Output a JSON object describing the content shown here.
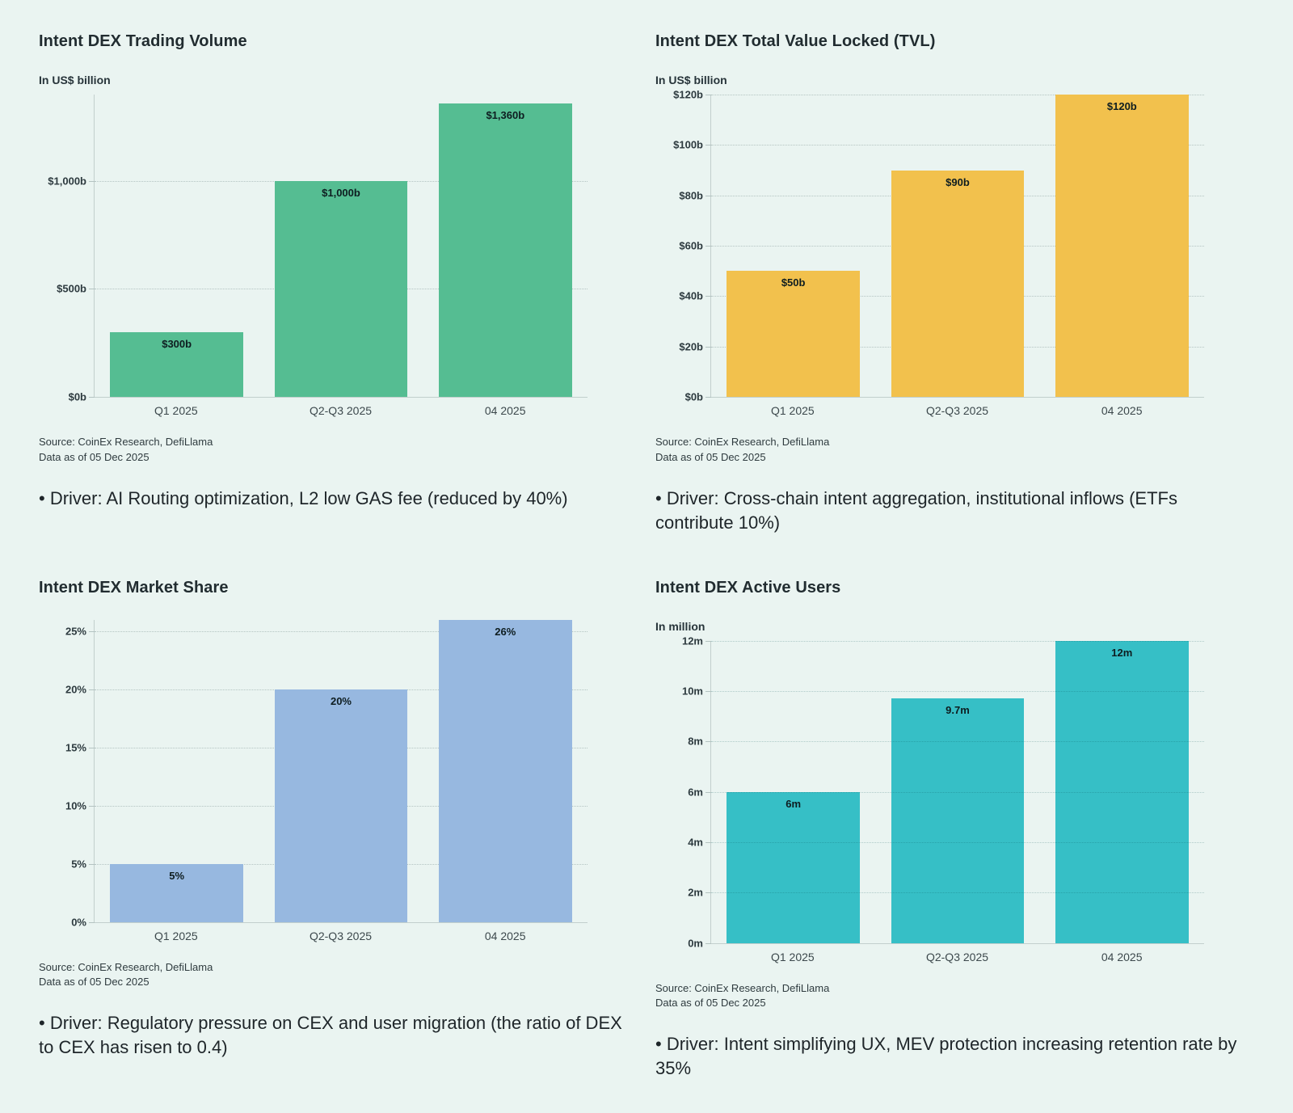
{
  "page": {
    "background_color": "#eaf4f1"
  },
  "chart_data": [
    {
      "type": "bar",
      "title": "Intent DEX Trading Volume",
      "unit_label": "In US$ billion",
      "categories": [
        "Q1 2025",
        "Q2-Q3 2025",
        "04 2025"
      ],
      "values": [
        300,
        1000,
        1360
      ],
      "bar_labels": [
        "$300b",
        "$1,000b",
        "$1,360b"
      ],
      "ylim": [
        0,
        1400
      ],
      "yticks": [
        {
          "value": 0,
          "label": "$0b"
        },
        {
          "value": 500,
          "label": "$500b"
        },
        {
          "value": 1000,
          "label": "$1,000b"
        }
      ],
      "grid": true,
      "legend": "none",
      "bar_color": "#55bd92",
      "source": "Source: CoinEx Research, DefiLlama",
      "data_as_of": "Data as of 05 Dec 2025",
      "driver": "• Driver: AI Routing optimization, L2 low GAS fee (reduced by 40%)"
    },
    {
      "type": "bar",
      "title": "Intent DEX Total Value Locked (TVL)",
      "unit_label": "In US$ billion",
      "categories": [
        "Q1 2025",
        "Q2-Q3 2025",
        "04 2025"
      ],
      "values": [
        50,
        90,
        120
      ],
      "bar_labels": [
        "$50b",
        "$90b",
        "$120b"
      ],
      "ylim": [
        0,
        120
      ],
      "yticks": [
        {
          "value": 0,
          "label": "$0b"
        },
        {
          "value": 20,
          "label": "$20b"
        },
        {
          "value": 40,
          "label": "$40b"
        },
        {
          "value": 60,
          "label": "$60b"
        },
        {
          "value": 80,
          "label": "$80b"
        },
        {
          "value": 100,
          "label": "$100b"
        },
        {
          "value": 120,
          "label": "$120b"
        }
      ],
      "grid": true,
      "legend": "none",
      "bar_color": "#f2c14d",
      "source": "Source: CoinEx Research, DefiLlama",
      "data_as_of": "Data as of 05 Dec 2025",
      "driver": "• Driver: Cross-chain intent aggregation, institutional inflows (ETFs contribute 10%)"
    },
    {
      "type": "bar",
      "title": "Intent DEX Market Share",
      "unit_label": "",
      "categories": [
        "Q1 2025",
        "Q2-Q3 2025",
        "04 2025"
      ],
      "values": [
        5,
        20,
        26
      ],
      "bar_labels": [
        "5%",
        "20%",
        "26%"
      ],
      "ylim": [
        0,
        26
      ],
      "yticks": [
        {
          "value": 0,
          "label": "0%"
        },
        {
          "value": 5,
          "label": "5%"
        },
        {
          "value": 10,
          "label": "10%"
        },
        {
          "value": 15,
          "label": "15%"
        },
        {
          "value": 20,
          "label": "20%"
        },
        {
          "value": 25,
          "label": "25%"
        }
      ],
      "grid": true,
      "legend": "none",
      "bar_color": "#97b8e0",
      "source": "Source: CoinEx Research, DefiLlama",
      "data_as_of": "Data as of 05 Dec 2025",
      "driver": "• Driver: Regulatory pressure on CEX and user migration (the ratio of DEX to CEX has risen to 0.4)"
    },
    {
      "type": "bar",
      "title": "Intent DEX Active Users",
      "unit_label": "In million",
      "categories": [
        "Q1 2025",
        "Q2-Q3 2025",
        "04 2025"
      ],
      "values": [
        6,
        9.7,
        12
      ],
      "bar_labels": [
        "6m",
        "9.7m",
        "12m"
      ],
      "ylim": [
        0,
        12
      ],
      "yticks": [
        {
          "value": 0,
          "label": "0m"
        },
        {
          "value": 2,
          "label": "2m"
        },
        {
          "value": 4,
          "label": "4m"
        },
        {
          "value": 6,
          "label": "6m"
        },
        {
          "value": 8,
          "label": "8m"
        },
        {
          "value": 10,
          "label": "10m"
        },
        {
          "value": 12,
          "label": "12m"
        }
      ],
      "grid": true,
      "gridlines_over_bars": true,
      "legend": "none",
      "bar_color": "#36bfc6",
      "source": "Source: CoinEx Research, DefiLlama",
      "data_as_of": "Data as of 05 Dec 2025",
      "driver": "• Driver: Intent simplifying UX, MEV protection increasing retention rate by 35%"
    }
  ]
}
